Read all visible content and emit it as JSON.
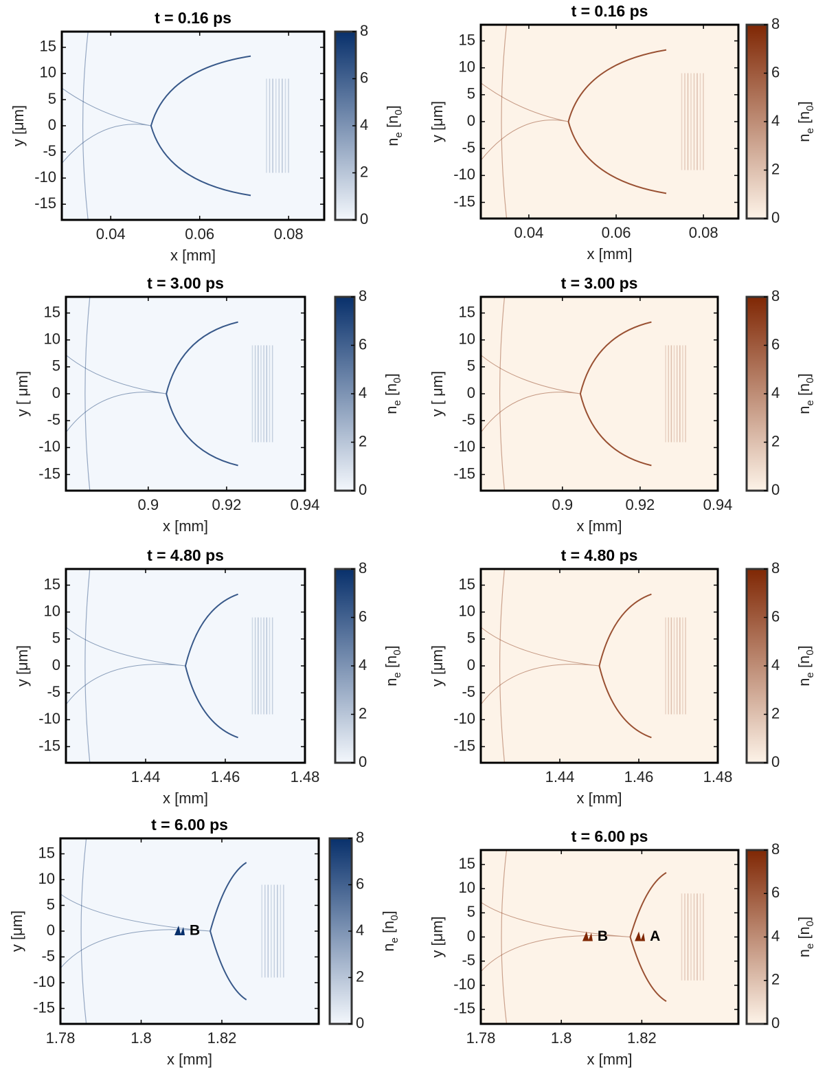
{
  "chart_data": [
    {
      "type": "heatmap",
      "title": "t = 0.16 ps",
      "xlabel": "x [mm]",
      "ylabel": "y [μm]",
      "xlim": [
        0.029,
        0.088
      ],
      "xticks": [
        0.04,
        0.06,
        0.08
      ],
      "ylim": [
        -18,
        18
      ],
      "yticks": [
        -15,
        -10,
        -5,
        0,
        5,
        10,
        15
      ],
      "colorbar_label": "n_e [n_0]",
      "clim": [
        0,
        8
      ],
      "cticks": [
        0,
        2,
        4,
        6,
        8
      ],
      "colormap": [
        "#f3f7fc",
        "#08306b"
      ]
    },
    {
      "type": "heatmap",
      "title": "t = 0.16 ps",
      "xlabel": "x [mm]",
      "ylabel": "y [μm]",
      "xlim": [
        0.029,
        0.088
      ],
      "xticks": [
        0.04,
        0.06,
        0.08
      ],
      "ylim": [
        -18,
        18
      ],
      "yticks": [
        -15,
        -10,
        -5,
        0,
        5,
        10,
        15
      ],
      "colorbar_label": "n_e [n_0]",
      "clim": [
        0,
        8
      ],
      "cticks": [
        0,
        2,
        4,
        6,
        8
      ],
      "colormap": [
        "#fdf3e8",
        "#7f2704"
      ]
    },
    {
      "type": "heatmap",
      "title": "t = 3.00 ps",
      "xlabel": "x [mm]",
      "ylabel": "y [ μm]",
      "xlim": [
        0.879,
        0.94
      ],
      "xticks": [
        0.9,
        0.92,
        0.94
      ],
      "ylim": [
        -18,
        18
      ],
      "yticks": [
        -15,
        -10,
        -5,
        0,
        5,
        10,
        15
      ],
      "colorbar_label": "n_e [n_0]",
      "clim": [
        0,
        8
      ],
      "cticks": [
        0,
        2,
        4,
        6,
        8
      ],
      "colormap": [
        "#f3f7fc",
        "#08306b"
      ]
    },
    {
      "type": "heatmap",
      "title": "t = 3.00 ps",
      "xlabel": "x [mm]",
      "ylabel": "y [ μm]",
      "xlim": [
        0.879,
        0.94
      ],
      "xticks": [
        0.9,
        0.92,
        0.94
      ],
      "ylim": [
        -18,
        18
      ],
      "yticks": [
        -15,
        -10,
        -5,
        0,
        5,
        10,
        15
      ],
      "colorbar_label": "n_e [n_0]",
      "clim": [
        0,
        8
      ],
      "cticks": [
        0,
        2,
        4,
        6,
        8
      ],
      "colormap": [
        "#fdf3e8",
        "#7f2704"
      ]
    },
    {
      "type": "heatmap",
      "title": "t = 4.80 ps",
      "xlabel": "x [mm]",
      "ylabel": "y [μm]",
      "xlim": [
        1.42,
        1.48
      ],
      "xticks": [
        1.44,
        1.46,
        1.48
      ],
      "ylim": [
        -18,
        18
      ],
      "yticks": [
        -15,
        -10,
        -5,
        0,
        5,
        10,
        15
      ],
      "colorbar_label": "n_e [n_0]",
      "clim": [
        0,
        8
      ],
      "cticks": [
        0,
        2,
        4,
        6,
        8
      ],
      "colormap": [
        "#f3f7fc",
        "#08306b"
      ]
    },
    {
      "type": "heatmap",
      "title": "t = 4.80 ps",
      "xlabel": "x [mm]",
      "ylabel": "y [μm]",
      "xlim": [
        1.42,
        1.48
      ],
      "xticks": [
        1.44,
        1.46,
        1.48
      ],
      "ylim": [
        -18,
        18
      ],
      "yticks": [
        -15,
        -10,
        -5,
        0,
        5,
        10,
        15
      ],
      "colorbar_label": "n_e [n_0]",
      "clim": [
        0,
        8
      ],
      "cticks": [
        0,
        2,
        4,
        6,
        8
      ],
      "colormap": [
        "#fdf3e8",
        "#7f2704"
      ]
    },
    {
      "type": "heatmap",
      "title": "t = 6.00 ps",
      "xlabel": "x [mm]",
      "ylabel": "y [μm]",
      "xlim": [
        1.78,
        1.844
      ],
      "xticks": [
        1.78,
        1.8,
        1.82
      ],
      "ylim": [
        -18,
        18
      ],
      "yticks": [
        -15,
        -10,
        -5,
        0,
        5,
        10,
        15
      ],
      "colorbar_label": "n_e [n_0]",
      "clim": [
        0,
        8
      ],
      "cticks": [
        0,
        2,
        4,
        6,
        8
      ],
      "colormap": [
        "#f3f7fc",
        "#08306b"
      ],
      "annotations": [
        {
          "text": "B",
          "x": 1.812,
          "y": 0
        }
      ]
    },
    {
      "type": "heatmap",
      "title": "t = 6.00 ps",
      "xlabel": "x [mm]",
      "ylabel": "y [μm]",
      "xlim": [
        1.78,
        1.844
      ],
      "xticks": [
        1.78,
        1.8,
        1.82
      ],
      "ylim": [
        -18,
        18
      ],
      "yticks": [
        -15,
        -10,
        -5,
        0,
        5,
        10,
        15
      ],
      "colorbar_label": "n_e [n_0]",
      "clim": [
        0,
        8
      ],
      "cticks": [
        0,
        2,
        4,
        6,
        8
      ],
      "colormap": [
        "#fdf3e8",
        "#7f2704"
      ],
      "annotations": [
        {
          "text": "B",
          "x": 1.809,
          "y": 0
        },
        {
          "text": "A",
          "x": 1.822,
          "y": 0
        }
      ]
    }
  ]
}
